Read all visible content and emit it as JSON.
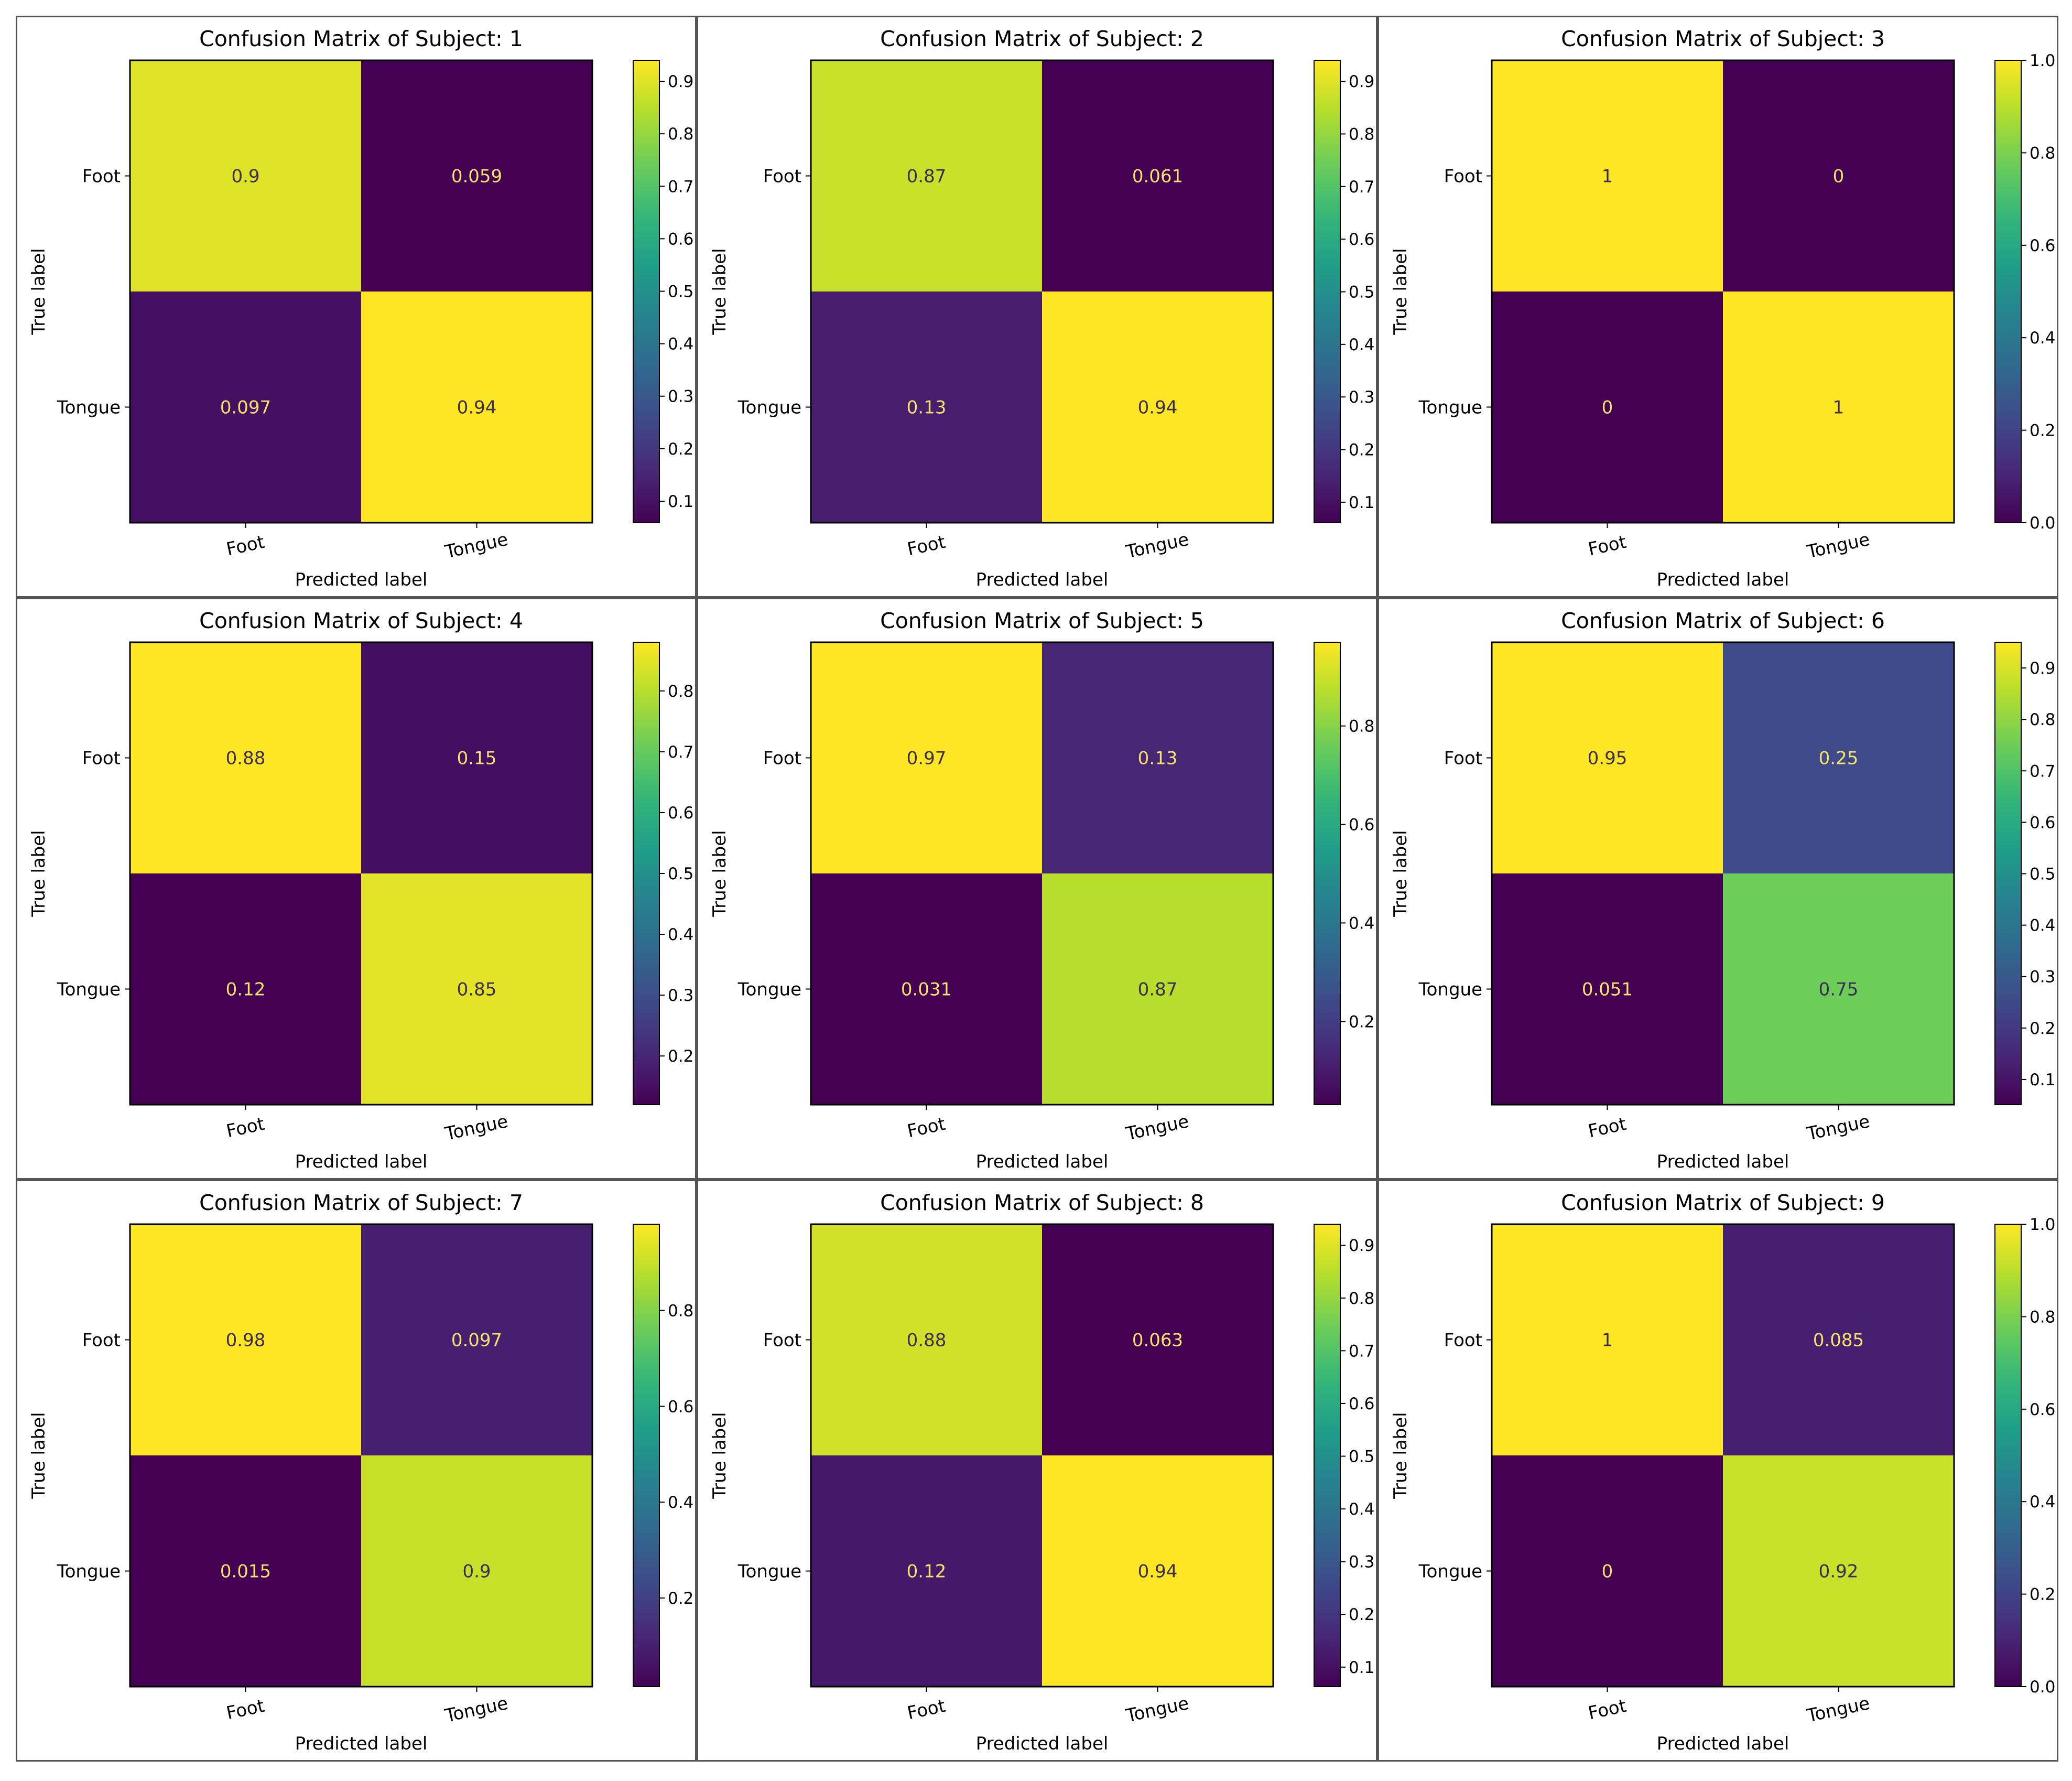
{
  "chart_data": [
    {
      "type": "heatmap",
      "title": "Confusion Matrix of Subject: 1",
      "xlabel": "Predicted label",
      "ylabel": "True label",
      "x_categories": [
        "Foot",
        "Tongue"
      ],
      "y_categories": [
        "Foot",
        "Tongue"
      ],
      "values": [
        [
          0.9,
          0.059
        ],
        [
          0.097,
          0.94
        ]
      ],
      "value_labels": [
        [
          "0.9",
          "0.059"
        ],
        [
          "0.097",
          "0.94"
        ]
      ],
      "colorbar": {
        "range": [
          0.059,
          0.94
        ],
        "ticks": [
          "0.1",
          "0.2",
          "0.3",
          "0.4",
          "0.5",
          "0.6",
          "0.7",
          "0.8",
          "0.9"
        ]
      }
    },
    {
      "type": "heatmap",
      "title": "Confusion Matrix of Subject: 2",
      "xlabel": "Predicted label",
      "ylabel": "True label",
      "x_categories": [
        "Foot",
        "Tongue"
      ],
      "y_categories": [
        "Foot",
        "Tongue"
      ],
      "values": [
        [
          0.87,
          0.061
        ],
        [
          0.13,
          0.94
        ]
      ],
      "value_labels": [
        [
          "0.87",
          "0.061"
        ],
        [
          "0.13",
          "0.94"
        ]
      ],
      "colorbar": {
        "range": [
          0.061,
          0.94
        ],
        "ticks": [
          "0.1",
          "0.2",
          "0.3",
          "0.4",
          "0.5",
          "0.6",
          "0.7",
          "0.8",
          "0.9"
        ]
      }
    },
    {
      "type": "heatmap",
      "title": "Confusion Matrix of Subject: 3",
      "xlabel": "Predicted label",
      "ylabel": "True label",
      "x_categories": [
        "Foot",
        "Tongue"
      ],
      "y_categories": [
        "Foot",
        "Tongue"
      ],
      "values": [
        [
          1,
          0
        ],
        [
          0,
          1
        ]
      ],
      "value_labels": [
        [
          "1",
          "0"
        ],
        [
          "0",
          "1"
        ]
      ],
      "colorbar": {
        "range": [
          0,
          1
        ],
        "ticks": [
          "0.0",
          "0.2",
          "0.4",
          "0.6",
          "0.8",
          "1.0"
        ]
      }
    },
    {
      "type": "heatmap",
      "title": "Confusion Matrix of Subject: 4",
      "xlabel": "Predicted label",
      "ylabel": "True label",
      "x_categories": [
        "Foot",
        "Tongue"
      ],
      "y_categories": [
        "Foot",
        "Tongue"
      ],
      "values": [
        [
          0.88,
          0.15
        ],
        [
          0.12,
          0.85
        ]
      ],
      "value_labels": [
        [
          "0.88",
          "0.15"
        ],
        [
          "0.12",
          "0.85"
        ]
      ],
      "colorbar": {
        "range": [
          0.12,
          0.88
        ],
        "ticks": [
          "0.2",
          "0.3",
          "0.4",
          "0.5",
          "0.6",
          "0.7",
          "0.8"
        ]
      }
    },
    {
      "type": "heatmap",
      "title": "Confusion Matrix of Subject: 5",
      "xlabel": "Predicted label",
      "ylabel": "True label",
      "x_categories": [
        "Foot",
        "Tongue"
      ],
      "y_categories": [
        "Foot",
        "Tongue"
      ],
      "values": [
        [
          0.97,
          0.13
        ],
        [
          0.031,
          0.87
        ]
      ],
      "value_labels": [
        [
          "0.97",
          "0.13"
        ],
        [
          "0.031",
          "0.87"
        ]
      ],
      "colorbar": {
        "range": [
          0.031,
          0.97
        ],
        "ticks": [
          "0.2",
          "0.4",
          "0.6",
          "0.8"
        ]
      }
    },
    {
      "type": "heatmap",
      "title": "Confusion Matrix of Subject: 6",
      "xlabel": "Predicted label",
      "ylabel": "True label",
      "x_categories": [
        "Foot",
        "Tongue"
      ],
      "y_categories": [
        "Foot",
        "Tongue"
      ],
      "values": [
        [
          0.95,
          0.25
        ],
        [
          0.051,
          0.75
        ]
      ],
      "value_labels": [
        [
          "0.95",
          "0.25"
        ],
        [
          "0.051",
          "0.75"
        ]
      ],
      "colorbar": {
        "range": [
          0.051,
          0.95
        ],
        "ticks": [
          "0.1",
          "0.2",
          "0.3",
          "0.4",
          "0.5",
          "0.6",
          "0.7",
          "0.8",
          "0.9"
        ]
      }
    },
    {
      "type": "heatmap",
      "title": "Confusion Matrix of Subject: 7",
      "xlabel": "Predicted label",
      "ylabel": "True label",
      "x_categories": [
        "Foot",
        "Tongue"
      ],
      "y_categories": [
        "Foot",
        "Tongue"
      ],
      "values": [
        [
          0.98,
          0.097
        ],
        [
          0.015,
          0.9
        ]
      ],
      "value_labels": [
        [
          "0.98",
          "0.097"
        ],
        [
          "0.015",
          "0.9"
        ]
      ],
      "colorbar": {
        "range": [
          0.015,
          0.98
        ],
        "ticks": [
          "0.2",
          "0.4",
          "0.6",
          "0.8"
        ]
      }
    },
    {
      "type": "heatmap",
      "title": "Confusion Matrix of Subject: 8",
      "xlabel": "Predicted label",
      "ylabel": "True label",
      "x_categories": [
        "Foot",
        "Tongue"
      ],
      "y_categories": [
        "Foot",
        "Tongue"
      ],
      "values": [
        [
          0.88,
          0.063
        ],
        [
          0.12,
          0.94
        ]
      ],
      "value_labels": [
        [
          "0.88",
          "0.063"
        ],
        [
          "0.12",
          "0.94"
        ]
      ],
      "colorbar": {
        "range": [
          0.063,
          0.94
        ],
        "ticks": [
          "0.1",
          "0.2",
          "0.3",
          "0.4",
          "0.5",
          "0.6",
          "0.7",
          "0.8",
          "0.9"
        ]
      }
    },
    {
      "type": "heatmap",
      "title": "Confusion Matrix of Subject: 9",
      "xlabel": "Predicted label",
      "ylabel": "True label",
      "x_categories": [
        "Foot",
        "Tongue"
      ],
      "y_categories": [
        "Foot",
        "Tongue"
      ],
      "values": [
        [
          1,
          0.085
        ],
        [
          0,
          0.92
        ]
      ],
      "value_labels": [
        [
          "1",
          "0.085"
        ],
        [
          "0",
          "0.92"
        ]
      ],
      "colorbar": {
        "range": [
          0,
          1
        ],
        "ticks": [
          "0.0",
          "0.2",
          "0.4",
          "0.6",
          "0.8",
          "1.0"
        ]
      }
    }
  ]
}
